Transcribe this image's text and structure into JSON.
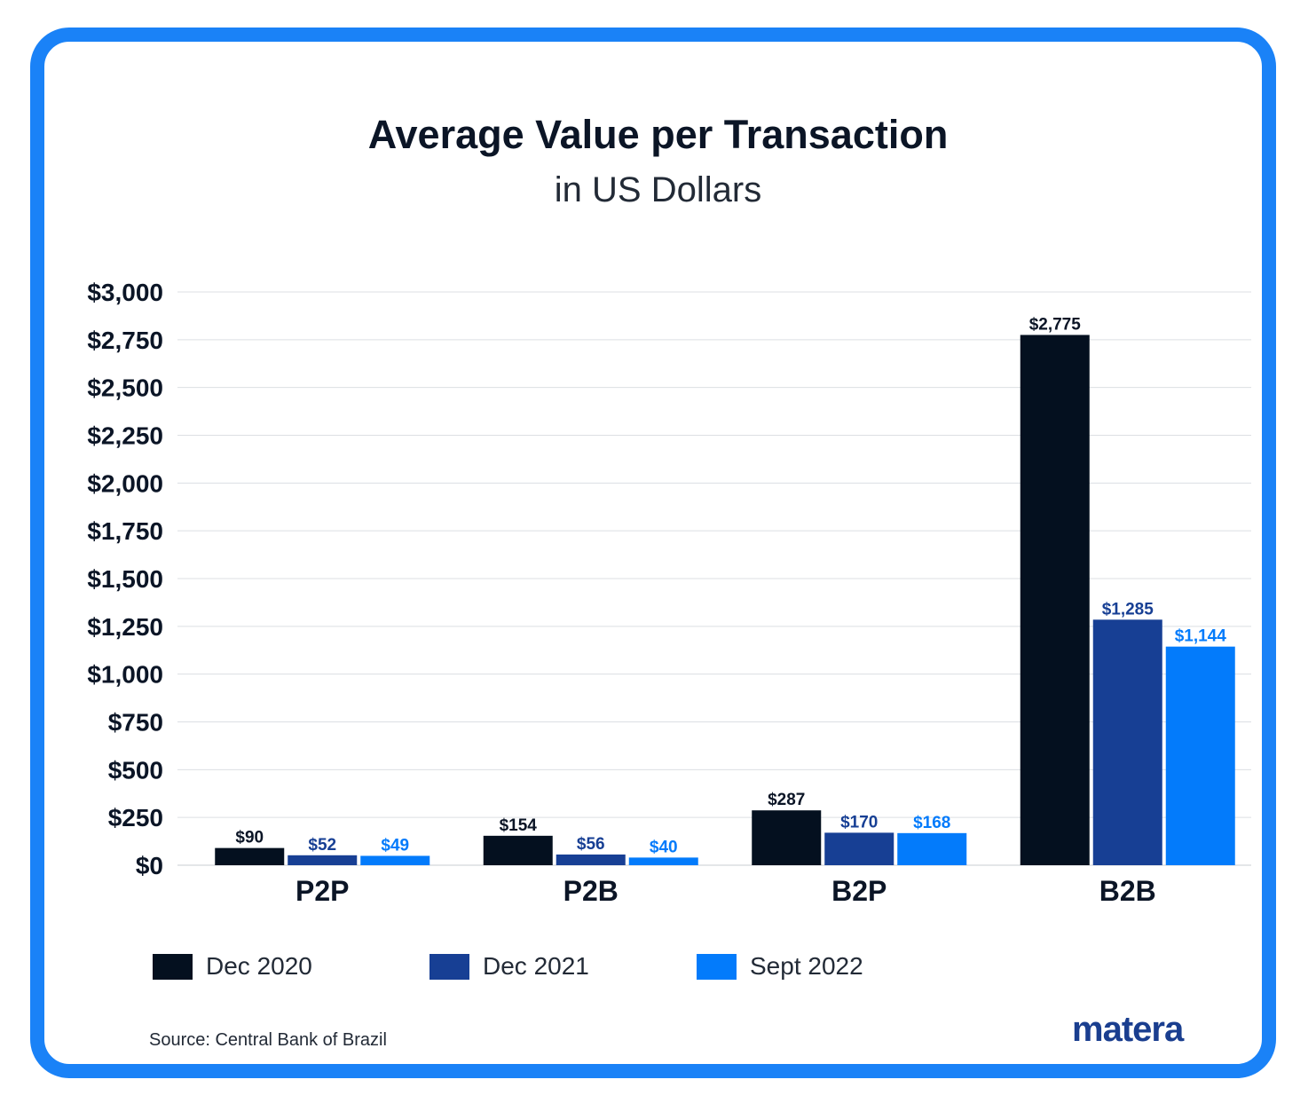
{
  "chart_data": {
    "type": "bar",
    "title": "Average Value per Transaction",
    "subtitle": "in US Dollars",
    "categories": [
      "P2P",
      "P2B",
      "B2P",
      "B2B"
    ],
    "series": [
      {
        "name": "Dec 2020",
        "color": "#04101f",
        "values": [
          90,
          154,
          287,
          2775
        ],
        "labels": [
          "$90",
          "$154",
          "$287",
          "$2,775"
        ]
      },
      {
        "name": "Dec 2021",
        "color": "#173f94",
        "values": [
          52,
          56,
          170,
          1285
        ],
        "labels": [
          "$52",
          "$56",
          "$170",
          "$1,285"
        ]
      },
      {
        "name": "Sept 2022",
        "color": "#037bfb",
        "values": [
          49,
          40,
          168,
          1144
        ],
        "labels": [
          "$49",
          "$40",
          "$168",
          "$1,144"
        ]
      }
    ],
    "ylim": [
      0,
      3000
    ],
    "yticks": [
      0,
      250,
      500,
      750,
      1000,
      1250,
      1500,
      1750,
      2000,
      2250,
      2500,
      2750,
      3000
    ],
    "ytick_labels": [
      "$0",
      "$250",
      "$500",
      "$750",
      "$1,000",
      "$1,250",
      "$1,500",
      "$1,750",
      "$2,000",
      "$2,250",
      "$2,500",
      "$2,750",
      "$3,000"
    ],
    "xlabel": "",
    "ylabel": "",
    "grid": true,
    "legend": "bottom"
  },
  "legend": {
    "items": [
      {
        "label": "Dec 2020",
        "color": "#04101f"
      },
      {
        "label": "Dec 2021",
        "color": "#173f94"
      },
      {
        "label": "Sept 2022",
        "color": "#037bfb"
      }
    ]
  },
  "footer": {
    "source": "Source: Central Bank of Brazil",
    "logo_text": "matera"
  },
  "colors": {
    "border": "#1a82f7",
    "title": "#0b1526"
  }
}
